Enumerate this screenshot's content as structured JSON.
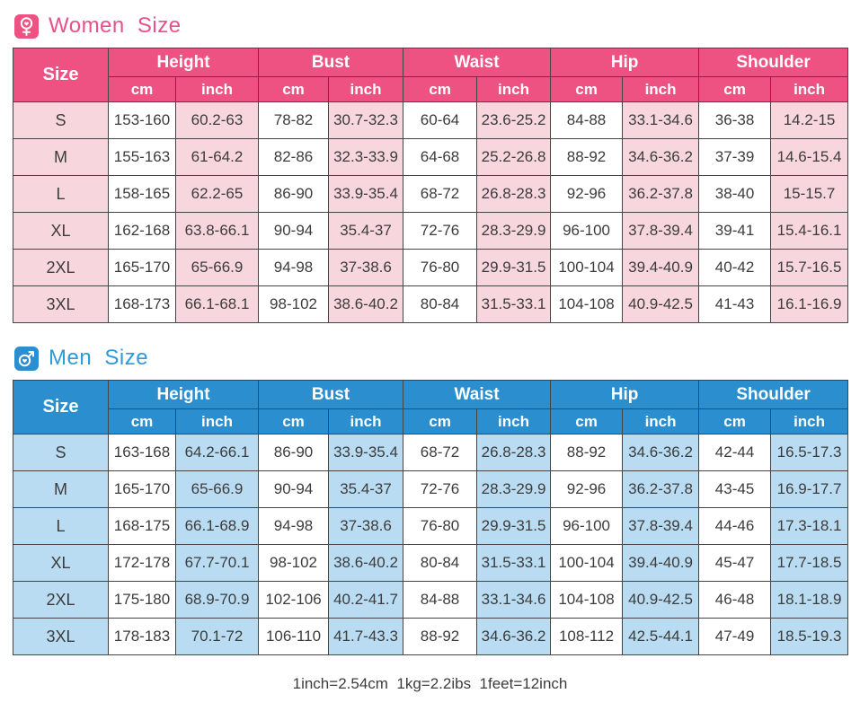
{
  "chart_data": [
    {
      "type": "table",
      "title": "Women Size",
      "icon": "female-heart-icon",
      "accent": "#e9518a",
      "header_bg": "#ed5282",
      "light_bg": "#f8d6dd",
      "size_label": "Size",
      "groups": [
        "Height",
        "Bust",
        "Waist",
        "Hip",
        "Shoulder"
      ],
      "units": [
        "cm",
        "inch"
      ],
      "rows": [
        [
          "S",
          "153-160",
          "60.2-63",
          "78-82",
          "30.7-32.3",
          "60-64",
          "23.6-25.2",
          "84-88",
          "33.1-34.6",
          "36-38",
          "14.2-15"
        ],
        [
          "M",
          "155-163",
          "61-64.2",
          "82-86",
          "32.3-33.9",
          "64-68",
          "25.2-26.8",
          "88-92",
          "34.6-36.2",
          "37-39",
          "14.6-15.4"
        ],
        [
          "L",
          "158-165",
          "62.2-65",
          "86-90",
          "33.9-35.4",
          "68-72",
          "26.8-28.3",
          "92-96",
          "36.2-37.8",
          "38-40",
          "15-15.7"
        ],
        [
          "XL",
          "162-168",
          "63.8-66.1",
          "90-94",
          "35.4-37",
          "72-76",
          "28.3-29.9",
          "96-100",
          "37.8-39.4",
          "39-41",
          "15.4-16.1"
        ],
        [
          "2XL",
          "165-170",
          "65-66.9",
          "94-98",
          "37-38.6",
          "76-80",
          "29.9-31.5",
          "100-104",
          "39.4-40.9",
          "40-42",
          "15.7-16.5"
        ],
        [
          "3XL",
          "168-173",
          "66.1-68.1",
          "98-102",
          "38.6-40.2",
          "80-84",
          "31.5-33.1",
          "104-108",
          "40.9-42.5",
          "41-43",
          "16.1-16.9"
        ]
      ]
    },
    {
      "type": "table",
      "title": "Men Size",
      "icon": "male-heart-icon",
      "accent": "#2e9bd6",
      "header_bg": "#2a8ecf",
      "light_bg": "#b9dcf2",
      "size_label": "Size",
      "groups": [
        "Height",
        "Bust",
        "Waist",
        "Hip",
        "Shoulder"
      ],
      "units": [
        "cm",
        "inch"
      ],
      "rows": [
        [
          "S",
          "163-168",
          "64.2-66.1",
          "86-90",
          "33.9-35.4",
          "68-72",
          "26.8-28.3",
          "88-92",
          "34.6-36.2",
          "42-44",
          "16.5-17.3"
        ],
        [
          "M",
          "165-170",
          "65-66.9",
          "90-94",
          "35.4-37",
          "72-76",
          "28.3-29.9",
          "92-96",
          "36.2-37.8",
          "43-45",
          "16.9-17.7"
        ],
        [
          "L",
          "168-175",
          "66.1-68.9",
          "94-98",
          "37-38.6",
          "76-80",
          "29.9-31.5",
          "96-100",
          "37.8-39.4",
          "44-46",
          "17.3-18.1"
        ],
        [
          "XL",
          "172-178",
          "67.7-70.1",
          "98-102",
          "38.6-40.2",
          "80-84",
          "31.5-33.1",
          "100-104",
          "39.4-40.9",
          "45-47",
          "17.7-18.5"
        ],
        [
          "2XL",
          "175-180",
          "68.9-70.9",
          "102-106",
          "40.2-41.7",
          "84-88",
          "33.1-34.6",
          "104-108",
          "40.9-42.5",
          "46-48",
          "18.1-18.9"
        ],
        [
          "3XL",
          "178-183",
          "70.1-72",
          "106-110",
          "41.7-43.3",
          "88-92",
          "34.6-36.2",
          "108-112",
          "42.5-44.1",
          "47-49",
          "18.5-19.3"
        ]
      ]
    }
  ],
  "footer": {
    "note": "1inch=2.54cm  1kg=2.2ibs  1feet=12inch"
  }
}
